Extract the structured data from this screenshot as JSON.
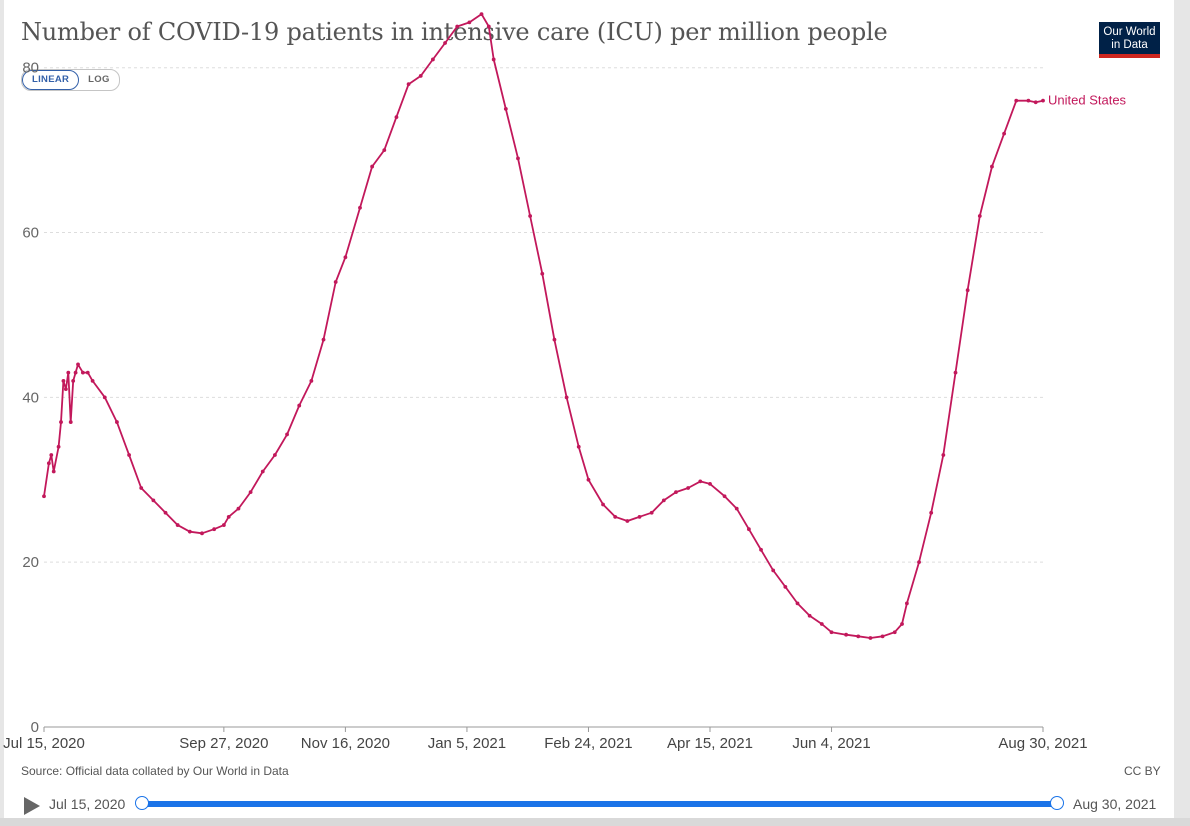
{
  "header": {
    "title": "Number of COVID-19 patients in intensive care (ICU) per million people",
    "logo_line1": "Our World",
    "logo_line2": "in Data"
  },
  "scale_toggle": {
    "linear_label": "LINEAR",
    "log_label": "LOG",
    "selected": "LINEAR"
  },
  "footer": {
    "source": "Source: Official data collated by Our World in Data",
    "license": "CC BY"
  },
  "timeline": {
    "start_label": "Jul 15, 2020",
    "end_label": "Aug 30, 2021"
  },
  "colors": {
    "series": "#c2185b",
    "grid": "#dddddd",
    "slider": "#1a73e8"
  },
  "chart_data": {
    "type": "line",
    "title": "Number of COVID-19 patients in intensive care (ICU) per million people",
    "xlabel": "",
    "ylabel": "",
    "ylim": [
      0,
      87
    ],
    "xlim_days": [
      0,
      411
    ],
    "yticks": [
      0,
      20,
      40,
      60,
      80
    ],
    "xticks": [
      {
        "label": "Jul 15, 2020",
        "day": 0
      },
      {
        "label": "Sep 27, 2020",
        "day": 74
      },
      {
        "label": "Nov 16, 2020",
        "day": 124
      },
      {
        "label": "Jan 5, 2021",
        "day": 174
      },
      {
        "label": "Feb 24, 2021",
        "day": 224
      },
      {
        "label": "Apr 15, 2021",
        "day": 274
      },
      {
        "label": "Jun 4, 2021",
        "day": 324
      },
      {
        "label": "Aug 30, 2021",
        "day": 411
      }
    ],
    "grid": true,
    "series": [
      {
        "name": "United States",
        "x_days": [
          0,
          2,
          3,
          4,
          6,
          7,
          8,
          9,
          10,
          11,
          12,
          13,
          14,
          16,
          18,
          20,
          25,
          30,
          35,
          40,
          45,
          50,
          55,
          60,
          65,
          70,
          74,
          76,
          80,
          85,
          90,
          95,
          100,
          105,
          110,
          115,
          120,
          124,
          130,
          135,
          140,
          145,
          150,
          155,
          160,
          165,
          170,
          175,
          180,
          183,
          185,
          190,
          195,
          200,
          205,
          210,
          215,
          220,
          224,
          230,
          235,
          240,
          245,
          250,
          255,
          260,
          265,
          270,
          274,
          280,
          285,
          290,
          295,
          300,
          305,
          310,
          315,
          320,
          324,
          330,
          335,
          340,
          345,
          350,
          353,
          355,
          360,
          365,
          370,
          375,
          380,
          385,
          390,
          395,
          400,
          405,
          408,
          411
        ],
        "values": [
          28,
          32,
          33,
          31,
          34,
          37,
          42,
          41,
          43,
          37,
          42,
          43,
          44,
          43,
          43,
          42,
          40,
          37,
          33,
          29,
          27.5,
          26,
          24.5,
          23.7,
          23.5,
          24,
          24.5,
          25.5,
          26.5,
          28.5,
          31,
          33,
          35.5,
          39,
          42,
          47,
          54,
          57,
          63,
          68,
          70,
          74,
          78,
          79,
          81,
          83,
          85,
          85.5,
          86.5,
          85,
          81,
          75,
          69,
          62,
          55,
          47,
          40,
          34,
          30,
          27,
          25.5,
          25,
          25.5,
          26,
          27.5,
          28.5,
          29,
          29.8,
          29.5,
          28,
          26.5,
          24,
          21.5,
          19,
          17,
          15,
          13.5,
          12.5,
          11.5,
          11.2,
          11,
          10.8,
          11,
          11.5,
          12.5,
          15,
          20,
          26,
          33,
          43,
          53,
          62,
          68,
          72,
          76,
          76,
          75.8,
          76
        ]
      }
    ],
    "series_label": "United States"
  }
}
